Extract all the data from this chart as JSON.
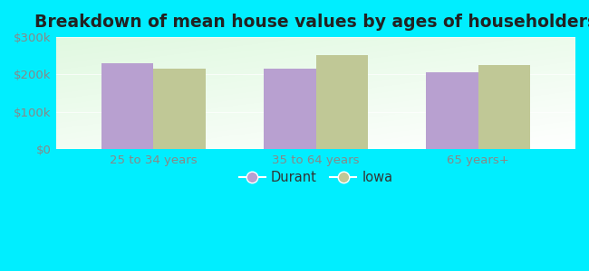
{
  "title": "Breakdown of mean house values by ages of householders",
  "categories": [
    "25 to 34 years",
    "35 to 64 years",
    "65 years+"
  ],
  "durant_values": [
    230000,
    215000,
    205000
  ],
  "iowa_values": [
    215000,
    253000,
    225000
  ],
  "ylim": [
    0,
    300000
  ],
  "yticks": [
    0,
    100000,
    200000,
    300000
  ],
  "ytick_labels": [
    "$0",
    "$100k",
    "$200k",
    "$300k"
  ],
  "durant_color": "#b8a0d0",
  "iowa_color": "#c0c896",
  "background_color": "#00eeff",
  "legend_labels": [
    "Durant",
    "Iowa"
  ],
  "bar_width": 0.32,
  "title_fontsize": 13.5,
  "tick_fontsize": 9.5,
  "legend_fontsize": 10.5
}
